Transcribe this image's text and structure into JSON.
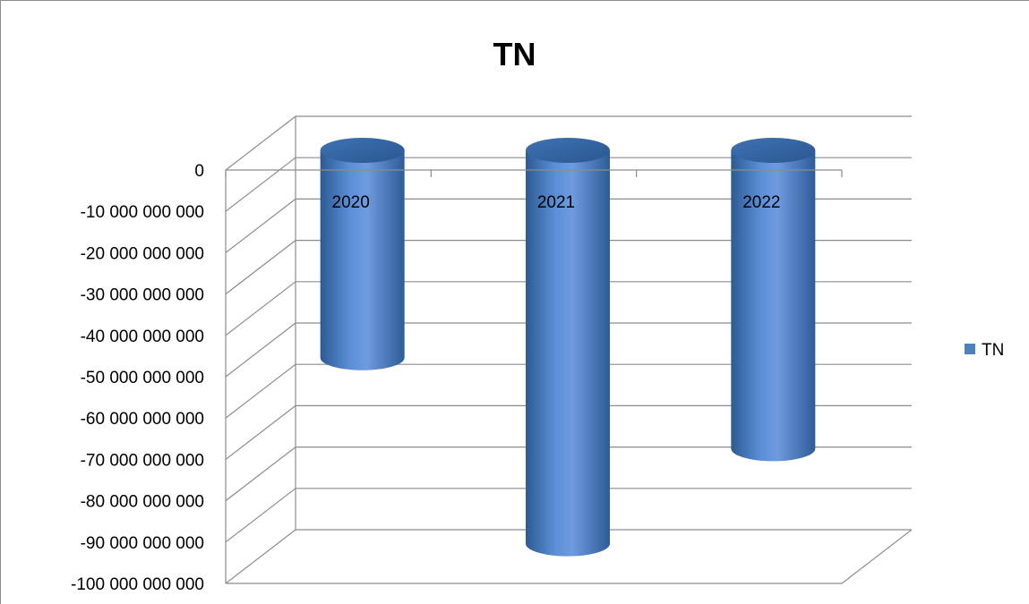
{
  "chart_data": {
    "type": "bar",
    "title": "TN",
    "categories": [
      "2020",
      "2021",
      "2022"
    ],
    "series": [
      {
        "name": "TN",
        "values": [
          -48000000000,
          -93000000000,
          -70000000000
        ]
      }
    ],
    "y_ticks": [
      "0",
      "-10 000 000 000",
      "-20 000 000 000",
      "-30 000 000 000",
      "-40 000 000 000",
      "-50 000 000 000",
      "-60 000 000 000",
      "-70 000 000 000",
      "-80 000 000 000",
      "-90 000 000 000",
      "-100 000 000 000"
    ],
    "ylim": [
      -100000000000,
      0
    ],
    "grid": true,
    "legend": "right",
    "colors": {
      "bar": "#4f81bd",
      "bar_dark": "#2c5a93",
      "bar_light": "#6f9be0",
      "grid": "#8c8c8c"
    }
  }
}
